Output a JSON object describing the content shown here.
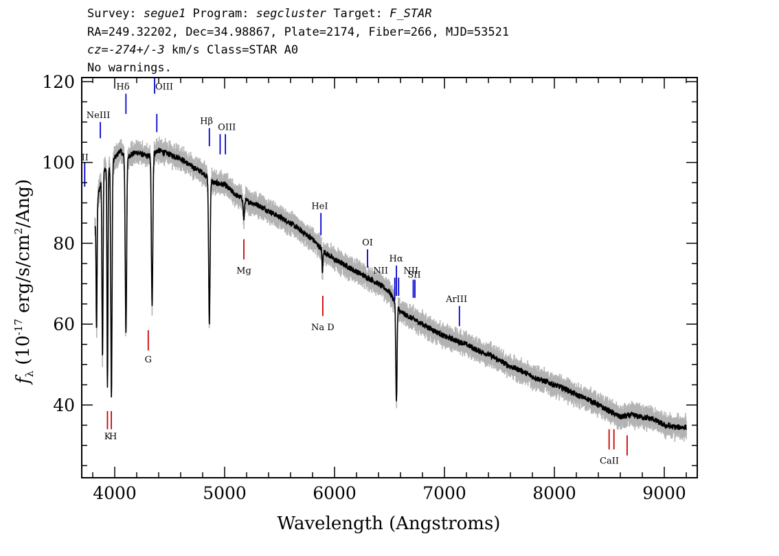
{
  "header": {
    "line1": {
      "survey_label": "Survey: ",
      "survey": "segue1",
      "program_label": " Program: ",
      "program": "segcluster",
      "target_label": " Target: ",
      "target": "F_STAR"
    },
    "line2": "RA=249.32202, Dec=34.98867, Plate=2174, Fiber=266, MJD=53521",
    "line3": {
      "cz": "cz=-274+/-3",
      "rest": " km/s Class=STAR A0"
    },
    "line4": "No warnings."
  },
  "chart_data": {
    "type": "line",
    "xlabel": "Wavelength (Angstroms)",
    "ylabel_prefix": "f",
    "ylabel_sub": "λ",
    "ylabel_main": " (10",
    "ylabel_exp": "-17",
    "ylabel_mid": " erg/s/cm",
    "ylabel_exp2": "2",
    "ylabel_end": "/Ang)",
    "xlim": [
      3700,
      9300
    ],
    "ylim": [
      22,
      121
    ],
    "x_ticks": [
      "4000",
      "5000",
      "6000",
      "7000",
      "8000",
      "9000"
    ],
    "y_ticks": [
      "40",
      "60",
      "80",
      "100",
      "120"
    ],
    "colors": {
      "flux": "#000000",
      "error": "#b3b3b3",
      "emission": "#0000cc",
      "absorption": "#cc0000"
    },
    "continuum": [
      [
        3820,
        84
      ],
      [
        3850,
        92
      ],
      [
        3900,
        98
      ],
      [
        3950,
        99
      ],
      [
        4000,
        101
      ],
      [
        4050,
        103
      ],
      [
        4100,
        101
      ],
      [
        4150,
        102
      ],
      [
        4200,
        102.5
      ],
      [
        4250,
        102
      ],
      [
        4300,
        101.5
      ],
      [
        4400,
        103
      ],
      [
        4500,
        102
      ],
      [
        4600,
        101
      ],
      [
        4700,
        99
      ],
      [
        4800,
        97.5
      ],
      [
        4900,
        95
      ],
      [
        5000,
        94.5
      ],
      [
        5100,
        92
      ],
      [
        5200,
        90.5
      ],
      [
        5300,
        89.5
      ],
      [
        5400,
        88
      ],
      [
        5500,
        86.5
      ],
      [
        5600,
        85
      ],
      [
        5700,
        83
      ],
      [
        5800,
        81
      ],
      [
        5900,
        78
      ],
      [
        6000,
        76
      ],
      [
        6100,
        74.5
      ],
      [
        6200,
        73
      ],
      [
        6300,
        71.5
      ],
      [
        6400,
        70
      ],
      [
        6500,
        68
      ],
      [
        6600,
        63
      ],
      [
        6700,
        61.5
      ],
      [
        6800,
        60
      ],
      [
        6900,
        58.5
      ],
      [
        7000,
        57
      ],
      [
        7100,
        56
      ],
      [
        7200,
        55
      ],
      [
        7300,
        53.5
      ],
      [
        7400,
        52.5
      ],
      [
        7500,
        51
      ],
      [
        7600,
        49.5
      ],
      [
        7700,
        48.5
      ],
      [
        7800,
        47
      ],
      [
        7900,
        46
      ],
      [
        8000,
        45
      ],
      [
        8100,
        44
      ],
      [
        8200,
        42.5
      ],
      [
        8300,
        41.5
      ],
      [
        8400,
        40
      ],
      [
        8500,
        38.5
      ],
      [
        8600,
        37
      ],
      [
        8700,
        37.5
      ],
      [
        8800,
        37
      ],
      [
        8900,
        36.5
      ],
      [
        9000,
        35
      ],
      [
        9100,
        34.5
      ],
      [
        9200,
        34.5
      ]
    ],
    "absorption_dips": [
      {
        "x": 3835,
        "depth": 30,
        "width": 6
      },
      {
        "x": 3889,
        "depth": 45,
        "width": 7
      },
      {
        "x": 3934,
        "depth": 55,
        "width": 6
      },
      {
        "x": 3970,
        "depth": 58,
        "width": 8
      },
      {
        "x": 4102,
        "depth": 43,
        "width": 9
      },
      {
        "x": 4340,
        "depth": 38,
        "width": 9
      },
      {
        "x": 4861,
        "depth": 36,
        "width": 9
      },
      {
        "x": 5175,
        "depth": 5,
        "width": 8
      },
      {
        "x": 5890,
        "depth": 6,
        "width": 5
      },
      {
        "x": 6563,
        "depth": 24,
        "width": 8
      }
    ],
    "emission_lines": [
      {
        "label": "Hδ",
        "x": 4102,
        "y1": 112,
        "y2": 117,
        "lx": 4075,
        "ly": 118
      },
      {
        "label": "OIII",
        "x": 4363,
        "y1": 117,
        "y2": 121,
        "lx": 4450,
        "ly": 118
      },
      {
        "label": "OIII",
        "x": 4383,
        "y1": 107.5,
        "y2": 112,
        "lx": 4450,
        "ly": 118
      },
      {
        "label": "NeIII",
        "x": 3869,
        "y1": 106,
        "y2": 110,
        "lx": 3850,
        "ly": 111
      },
      {
        "label": "II",
        "x": 3727,
        "y1": 94,
        "y2": 100,
        "lx": 3730,
        "ly": 100.5
      },
      {
        "label": "Hβ",
        "x": 4861,
        "y1": 104,
        "y2": 108.5,
        "lx": 4835,
        "ly": 109.5
      },
      {
        "label": "OIII",
        "x": 4959,
        "y1": 102,
        "y2": 107,
        "lx": 5020,
        "ly": 108
      },
      {
        "label": "OIII",
        "x": 5007,
        "y1": 102,
        "y2": 107,
        "lx": 5020,
        "ly": 108
      },
      {
        "label": "HeI",
        "x": 5876,
        "y1": 82,
        "y2": 87.5,
        "lx": 5865,
        "ly": 88.5
      },
      {
        "label": "OI",
        "x": 6300,
        "y1": 74,
        "y2": 78.5,
        "lx": 6300,
        "ly": 79.5
      },
      {
        "label": "NII",
        "x": 6548,
        "y1": 66,
        "y2": 71.5,
        "lx": 6420,
        "ly": 72.5
      },
      {
        "label": "Hα",
        "x": 6563,
        "y1": 67,
        "y2": 74.5,
        "lx": 6560,
        "ly": 75.5
      },
      {
        "label": "NII",
        "x": 6583,
        "y1": 67,
        "y2": 71.5,
        "lx": 6695,
        "ly": 72.5
      },
      {
        "label": "SII",
        "x": 6716,
        "y1": 66.5,
        "y2": 71,
        "lx": 6725,
        "ly": 71.5
      },
      {
        "label": "SII",
        "x": 6731,
        "y1": 66.5,
        "y2": 71,
        "lx": 6725,
        "ly": 71.5
      },
      {
        "label": "ArIII",
        "x": 7136,
        "y1": 59.5,
        "y2": 64.5,
        "lx": 7110,
        "ly": 65.5
      }
    ],
    "absorption_lines": [
      {
        "label": "K",
        "x": 3934,
        "y1": 34,
        "y2": 38.5,
        "lx": 3935,
        "ly": 31.5
      },
      {
        "label": "H",
        "x": 3969,
        "y1": 34,
        "y2": 38.5,
        "lx": 3985,
        "ly": 31.5
      },
      {
        "label": "G",
        "x": 4305,
        "y1": 53.5,
        "y2": 58.5,
        "lx": 4305,
        "ly": 50.5
      },
      {
        "label": "Mg",
        "x": 5175,
        "y1": 76,
        "y2": 81,
        "lx": 5175,
        "ly": 72.5
      },
      {
        "label": "Na  D",
        "x": 5893,
        "y1": 62,
        "y2": 67,
        "lx": 5893,
        "ly": 58.5
      },
      {
        "label": "CaII",
        "x": 8498,
        "y1": 29,
        "y2": 34,
        "lx": 8500,
        "ly": 25.5
      },
      {
        "label": "",
        "x": 8542,
        "y1": 29,
        "y2": 34,
        "lx": 8542,
        "ly": 25.5
      },
      {
        "label": "",
        "x": 8662,
        "y1": 27.5,
        "y2": 32.5,
        "lx": 8662,
        "ly": 25.5
      }
    ]
  }
}
